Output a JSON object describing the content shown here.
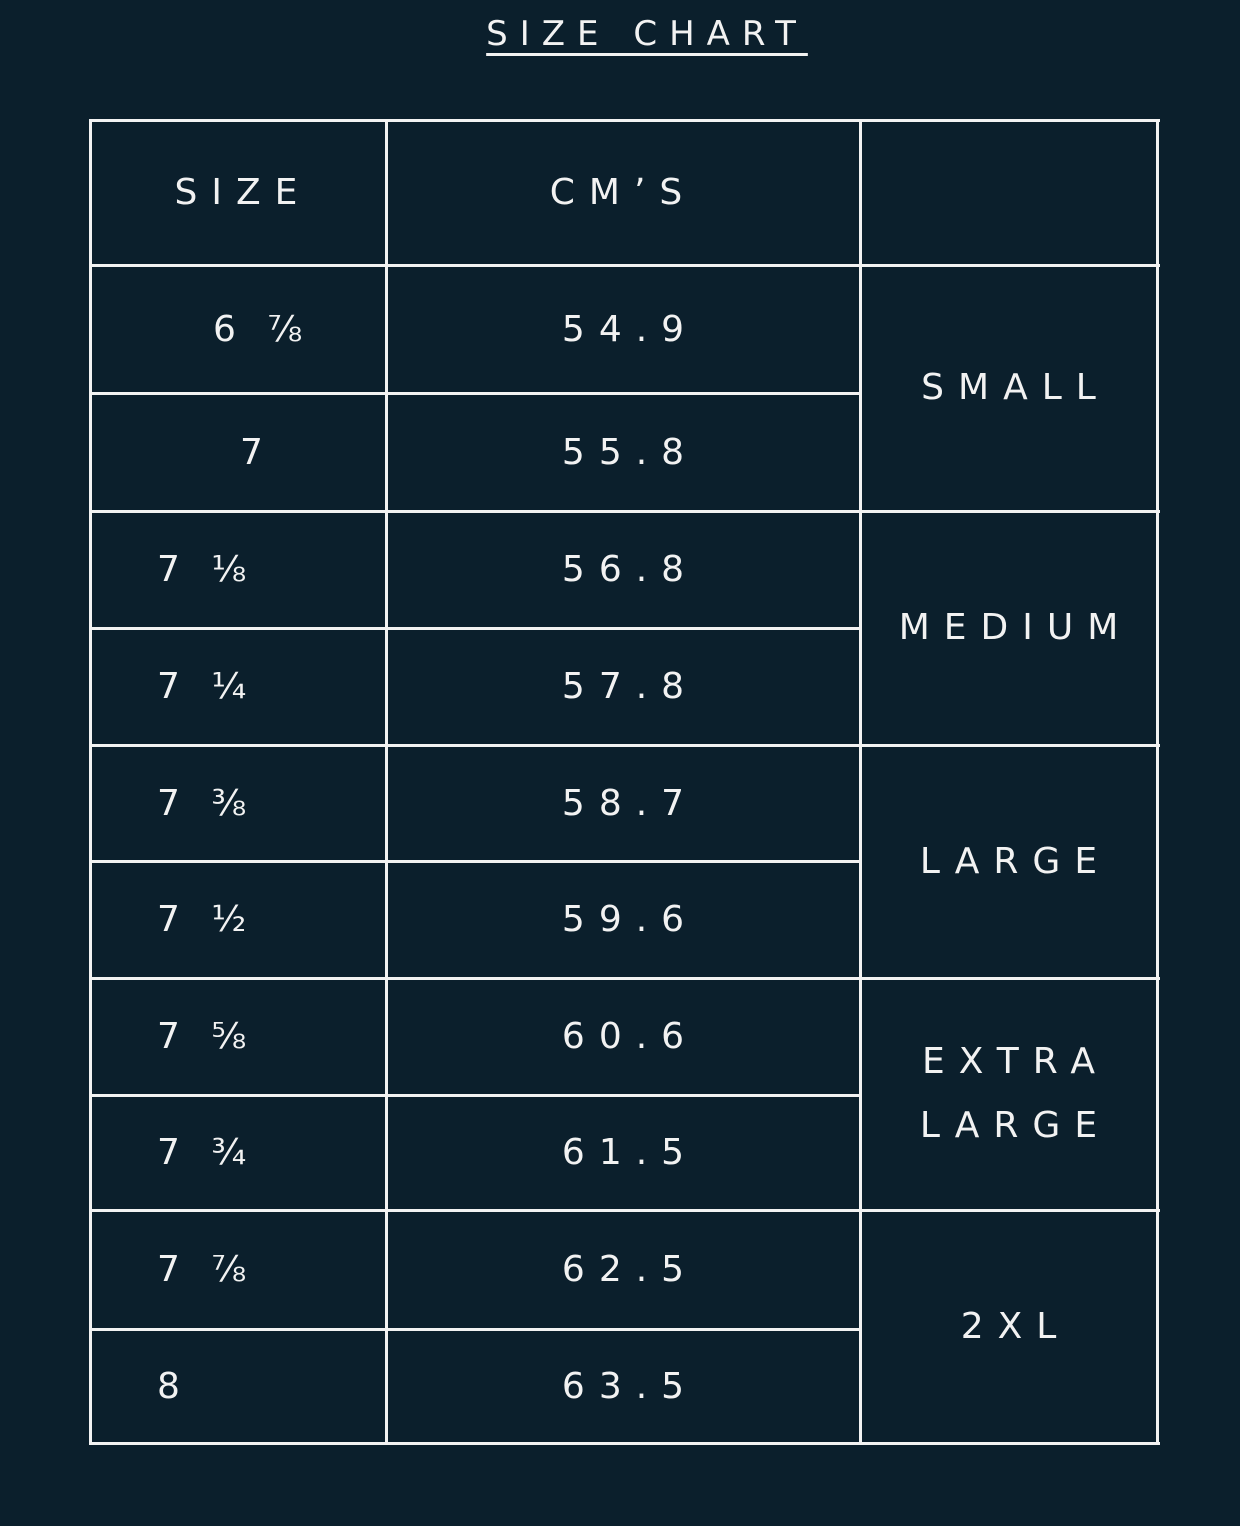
{
  "title": "SIZE CHART",
  "headers": {
    "size": "SIZE",
    "cms": "CM’S",
    "label": ""
  },
  "rows": [
    {
      "size": "6  ⅞",
      "cm": "54.9"
    },
    {
      "size": "7",
      "cm": "55.8"
    },
    {
      "size": "7  ⅛",
      "cm": "56.8"
    },
    {
      "size": "7  ¼",
      "cm": "57.8"
    },
    {
      "size": "7  ⅜",
      "cm": "58.7"
    },
    {
      "size": "7  ½",
      "cm": "59.6"
    },
    {
      "size": "7  ⅝",
      "cm": "60.6"
    },
    {
      "size": "7  ¾",
      "cm": "61.5"
    },
    {
      "size": "7  ⅞",
      "cm": "62.5"
    },
    {
      "size": "8",
      "cm": "63.5"
    }
  ],
  "groups": [
    {
      "label": "SMALL"
    },
    {
      "label": "MEDIUM"
    },
    {
      "label": "LARGE"
    },
    {
      "label": "EXTRA LARGE"
    },
    {
      "label": "2XL"
    }
  ],
  "colors": {
    "background": "#0b1f2c",
    "foreground": "#f2f2f2"
  }
}
